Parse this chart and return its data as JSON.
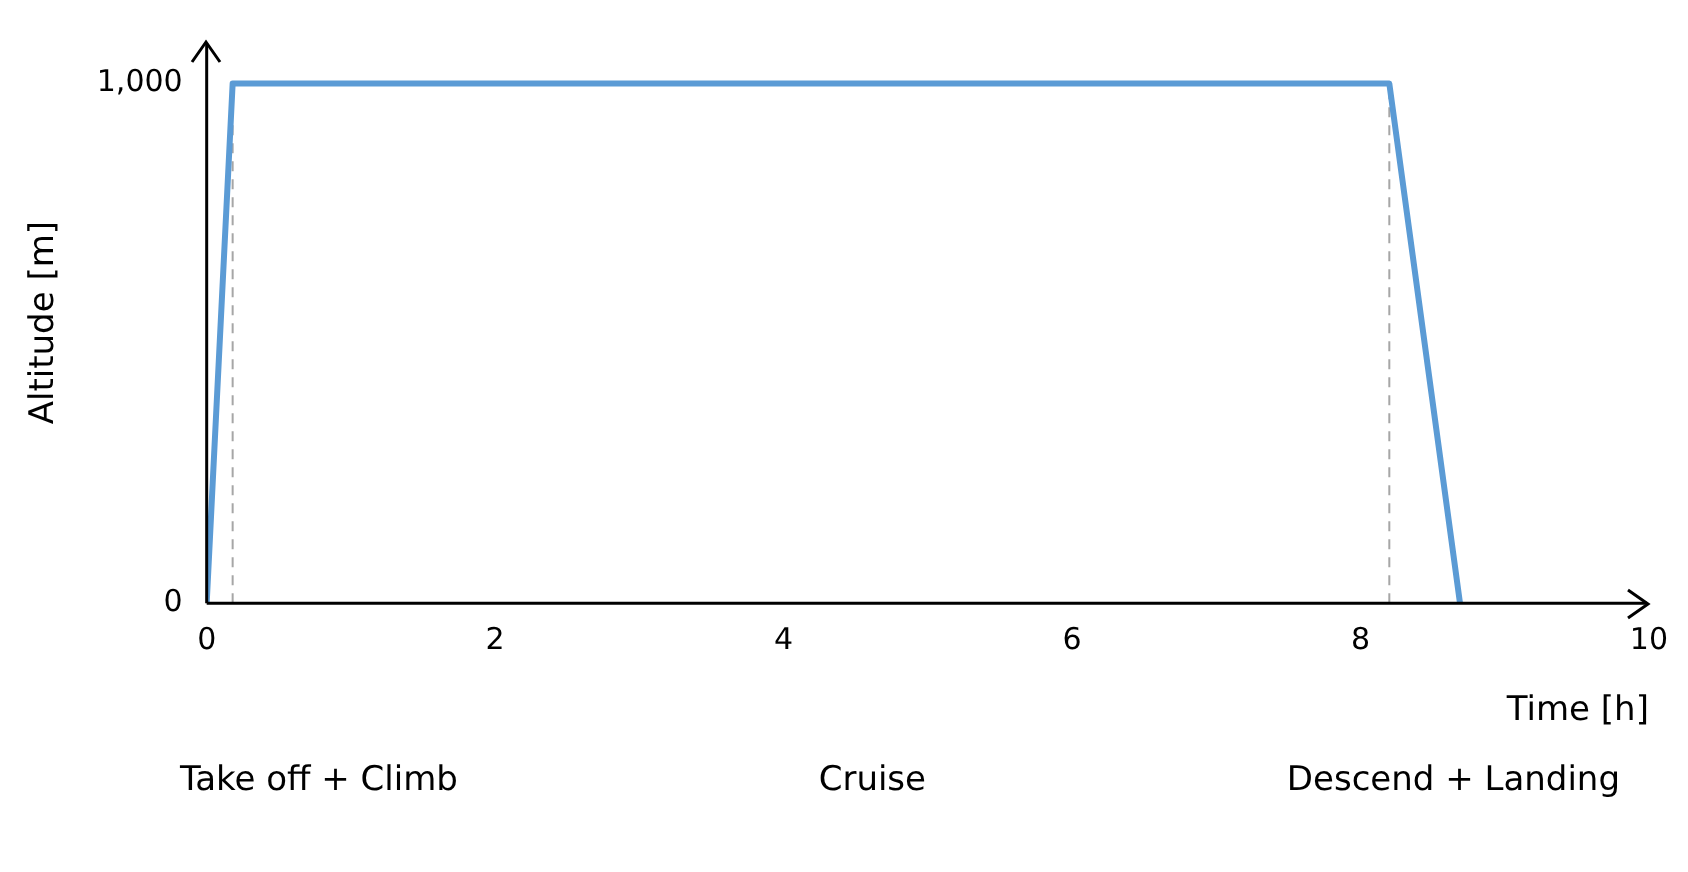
{
  "chart_data": {
    "type": "line",
    "xlabel": "Time [h]",
    "ylabel": "Altitude [m]",
    "series": [
      {
        "color": "#5b9bd5",
        "x": [
          0,
          0.18,
          8.2,
          8.69
        ],
        "values": [
          0,
          1000,
          1000,
          0
        ]
      }
    ],
    "xlim": [
      0,
      10
    ],
    "xticks": [
      0,
      2,
      4,
      6,
      8,
      10
    ],
    "ylim": [
      0,
      1080
    ],
    "yticks": [
      0,
      {
        "value": 1000,
        "label": "1,000"
      }
    ],
    "grid": false,
    "legend": false,
    "marker": "none",
    "line_style": "solid",
    "ref_lines": [
      {
        "axis": "x",
        "value": 0.18,
        "color": "#a6a6a6",
        "line_style": "dashed"
      },
      {
        "axis": "x",
        "value": 8.2,
        "color": "#a6a6a6",
        "line_style": "dashed"
      }
    ],
    "annotations": [
      "Take off + Climb",
      "Cruise",
      "Descend + Landing"
    ]
  }
}
